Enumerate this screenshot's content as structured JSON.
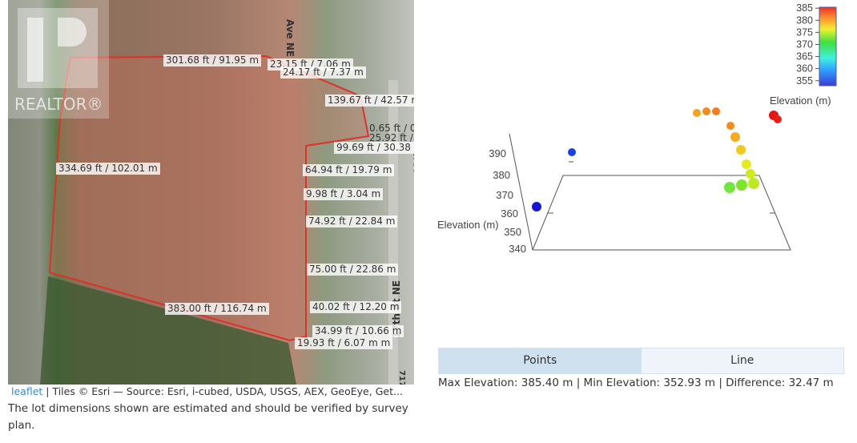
{
  "map": {
    "logo_text": "REALTOR®",
    "street_labels": [
      "Ave NE",
      "17th St NE",
      "2790",
      "717"
    ],
    "dimension_labels": [
      "301.68 ft / 91.95 m",
      "23.15 ft / 7.06 m",
      "24.17 ft / 7.37 m",
      "139.67 ft / 42.57 m",
      "0.65 ft / 0",
      "25.92 ft /",
      "99.69 ft / 30.38 m",
      "334.69 ft / 102.01 m",
      "64.94 ft / 19.79 m",
      "9.98 ft / 3.04 m",
      "74.92 ft / 22.84 m",
      "75.00 ft / 22.86 m",
      "40.02 ft / 12.20 m",
      "383.00 ft / 116.74 m",
      "34.99 ft / 10.66 m",
      "19.93 ft / 6.07 m m"
    ],
    "attribution_link": "leaflet",
    "attribution_text": " | Tiles © Esri — Source: Esri, i-cubed, USDA, USGS, AEX, GeoEye, Get...",
    "note": "The lot dimensions shown are estimated and should be verified by survey plan.",
    "boundary_color": "#e0302a"
  },
  "chart_data": {
    "type": "scatter3d",
    "zlabel": "Elevation (m)",
    "z_ticks": [
      340,
      350,
      360,
      370,
      380,
      390
    ],
    "colorbar": {
      "title": "Elevation (m)",
      "ticks": [
        355,
        360,
        365,
        370,
        375,
        380,
        385
      ],
      "colorscale": "jet"
    },
    "points_elevation": [
      352.93,
      356,
      380,
      381,
      381.5,
      385.4,
      385,
      381,
      379.5,
      378,
      376,
      375,
      374,
      371,
      370
    ]
  },
  "tabs": [
    {
      "label": "Points",
      "active": true
    },
    {
      "label": "Line",
      "active": false
    }
  ],
  "stats": "Max Elevation: 385.40 m | Min Elevation: 352.93 m | Difference: 32.47 m"
}
